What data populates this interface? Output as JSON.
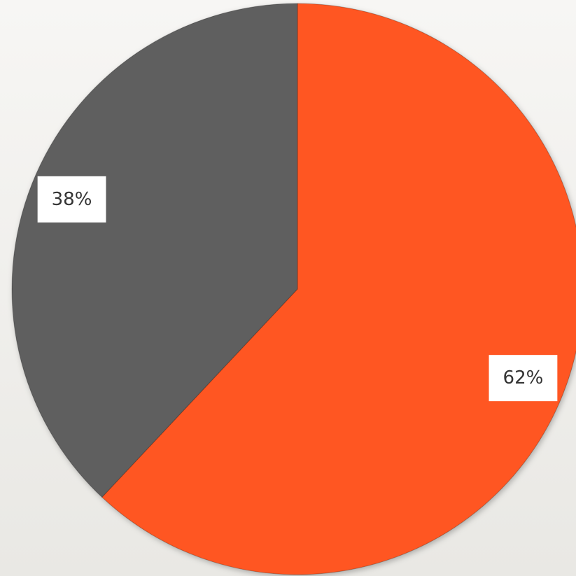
{
  "chart_data": {
    "type": "pie",
    "values": [
      62,
      38
    ],
    "value_labels": [
      "62%",
      "38%"
    ],
    "colors": [
      "#ff5722",
      "#5f5f5f"
    ]
  }
}
